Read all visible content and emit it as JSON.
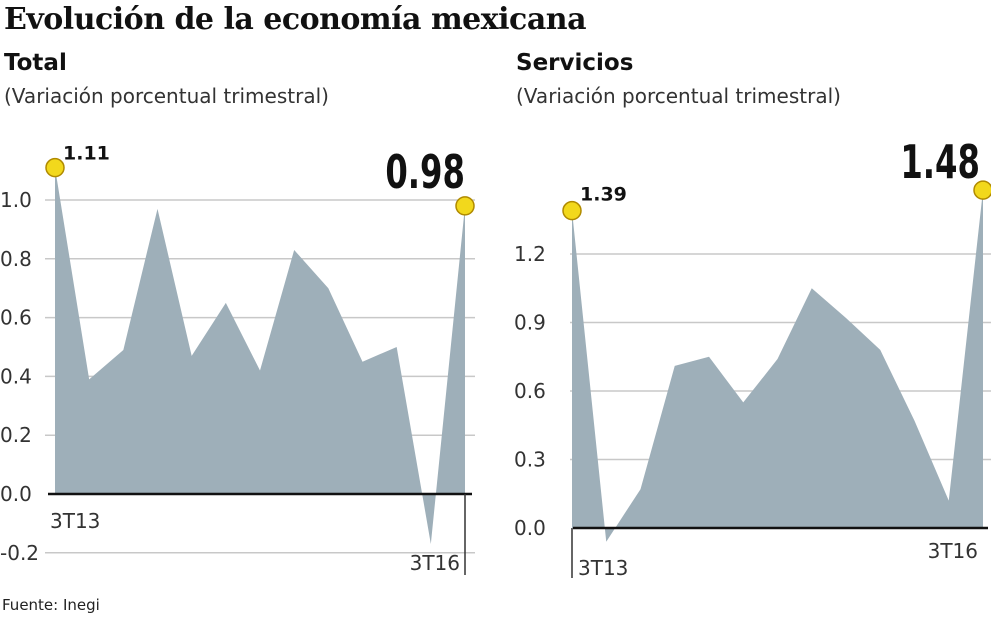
{
  "title": "Evolución de la economía mexicana",
  "source": "Fuente: Inegi",
  "colors": {
    "area": "#9eafb9",
    "marker": "#f2d81c",
    "grid": "#c8c8c8"
  },
  "chart_data": [
    {
      "type": "area",
      "title": "Total",
      "subtitle": "(Variación porcentual trimestral)",
      "x_start_label": "3T13",
      "x_end_label": "3T16",
      "yticks": [
        "1.0",
        "0.8",
        "0.6",
        "0.4",
        "0.2",
        "0.0",
        "-0.2"
      ],
      "ytick_values": [
        1.0,
        0.8,
        0.6,
        0.4,
        0.2,
        0.0,
        -0.2
      ],
      "ylim": [
        -0.2,
        1.1
      ],
      "values": [
        1.11,
        0.39,
        0.49,
        0.97,
        0.47,
        0.65,
        0.42,
        0.83,
        0.7,
        0.45,
        0.5,
        -0.17,
        0.98
      ],
      "first_label": "1.11",
      "last_label": "0.98"
    },
    {
      "type": "area",
      "title": "Servicios",
      "subtitle": "(Variación porcentual trimestral)",
      "x_start_label": "3T13",
      "x_end_label": "3T16",
      "yticks": [
        "1.2",
        "0.9",
        "0.6",
        "0.3",
        "0.0"
      ],
      "ytick_values": [
        1.2,
        0.9,
        0.6,
        0.3,
        0.0
      ],
      "ylim": [
        0.0,
        1.48
      ],
      "values": [
        1.39,
        -0.06,
        0.17,
        0.71,
        0.75,
        0.55,
        0.74,
        1.05,
        0.92,
        0.78,
        0.47,
        0.12,
        1.48
      ],
      "first_label": "1.39",
      "last_label": "1.48"
    }
  ]
}
